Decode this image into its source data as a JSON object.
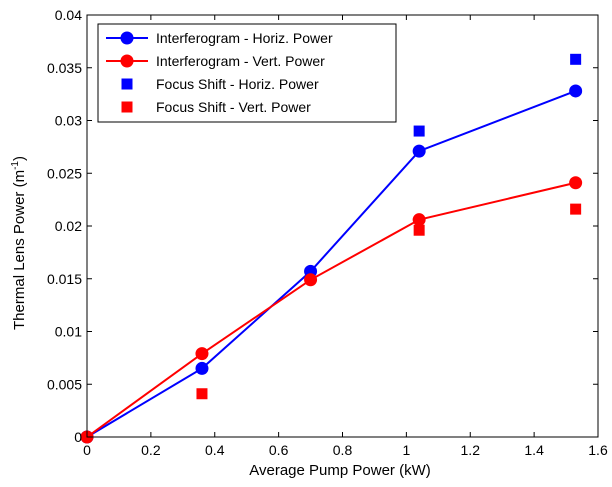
{
  "chart_data": {
    "type": "line",
    "xlabel": "Average Pump Power (kW)",
    "ylabel_main": "Thermal Lens Power (m",
    "ylabel_sup": "-1",
    "ylabel_close": ")",
    "xlim": [
      0,
      1.6
    ],
    "ylim": [
      0,
      0.04
    ],
    "xticks": [
      "0",
      "0.2",
      "0.4",
      "0.6",
      "0.8",
      "1",
      "1.2",
      "1.4",
      "1.6"
    ],
    "yticks": [
      "0",
      "0.005",
      "0.01",
      "0.015",
      "0.02",
      "0.025",
      "0.03",
      "0.035",
      "0.04"
    ],
    "grid": false,
    "legend_position": "top-left",
    "series": [
      {
        "name": "Interferogram - Horiz. Power",
        "marker": "circle",
        "line": true,
        "color": "#0000ff",
        "x": [
          0,
          0.36,
          0.7,
          1.04,
          1.53
        ],
        "y": [
          0,
          0.0065,
          0.0157,
          0.0271,
          0.0328
        ]
      },
      {
        "name": "Interferogram - Vert. Power",
        "marker": "circle",
        "line": true,
        "color": "#ff0000",
        "x": [
          0,
          0.36,
          0.7,
          1.04,
          1.53
        ],
        "y": [
          0,
          0.0079,
          0.0149,
          0.0206,
          0.0241
        ]
      },
      {
        "name": "Focus Shift - Horiz. Power",
        "marker": "square",
        "line": false,
        "color": "#0000ff",
        "x": [
          1.04,
          1.53
        ],
        "y": [
          0.029,
          0.0358
        ]
      },
      {
        "name": "Focus Shift - Vert. Power",
        "marker": "square",
        "line": false,
        "color": "#ff0000",
        "x": [
          0.36,
          1.04,
          1.53
        ],
        "y": [
          0.0041,
          0.0196,
          0.0216
        ]
      }
    ]
  }
}
